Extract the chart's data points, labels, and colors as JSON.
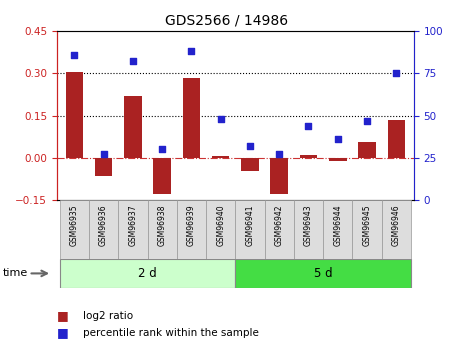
{
  "title": "GDS2566 / 14986",
  "samples": [
    "GSM96935",
    "GSM96936",
    "GSM96937",
    "GSM96938",
    "GSM96939",
    "GSM96940",
    "GSM96941",
    "GSM96942",
    "GSM96943",
    "GSM96944",
    "GSM96945",
    "GSM96946"
  ],
  "log2_ratio": [
    0.305,
    -0.065,
    0.22,
    -0.13,
    0.285,
    0.005,
    -0.045,
    -0.13,
    0.01,
    -0.01,
    0.055,
    0.135
  ],
  "percentile_rank": [
    86,
    27,
    82,
    30,
    88,
    48,
    32,
    27,
    44,
    36,
    47,
    75
  ],
  "groups": [
    {
      "label": "2 d",
      "start": 0,
      "end": 6
    },
    {
      "label": "5 d",
      "start": 6,
      "end": 12
    }
  ],
  "ylim_left": [
    -0.15,
    0.45
  ],
  "ylim_right": [
    0,
    100
  ],
  "yticks_left": [
    -0.15,
    0,
    0.15,
    0.3,
    0.45
  ],
  "yticks_right": [
    0,
    25,
    50,
    75,
    100
  ],
  "hlines": [
    0.15,
    0.3
  ],
  "bar_color": "#AA2222",
  "dot_color": "#2222CC",
  "zero_line_color": "#CC3333",
  "bg_color": "#FFFFFF",
  "tick_label_color_left": "#CC2222",
  "tick_label_color_right": "#2222CC",
  "legend_bar_label": "log2 ratio",
  "legend_dot_label": "percentile rank within the sample",
  "time_label": "time",
  "group_bg_color_1": "#CCFFCC",
  "group_bg_color_2": "#44DD44",
  "sample_box_color": "#DDDDDD",
  "sample_box_edge": "#999999",
  "group_edge": "#888888"
}
